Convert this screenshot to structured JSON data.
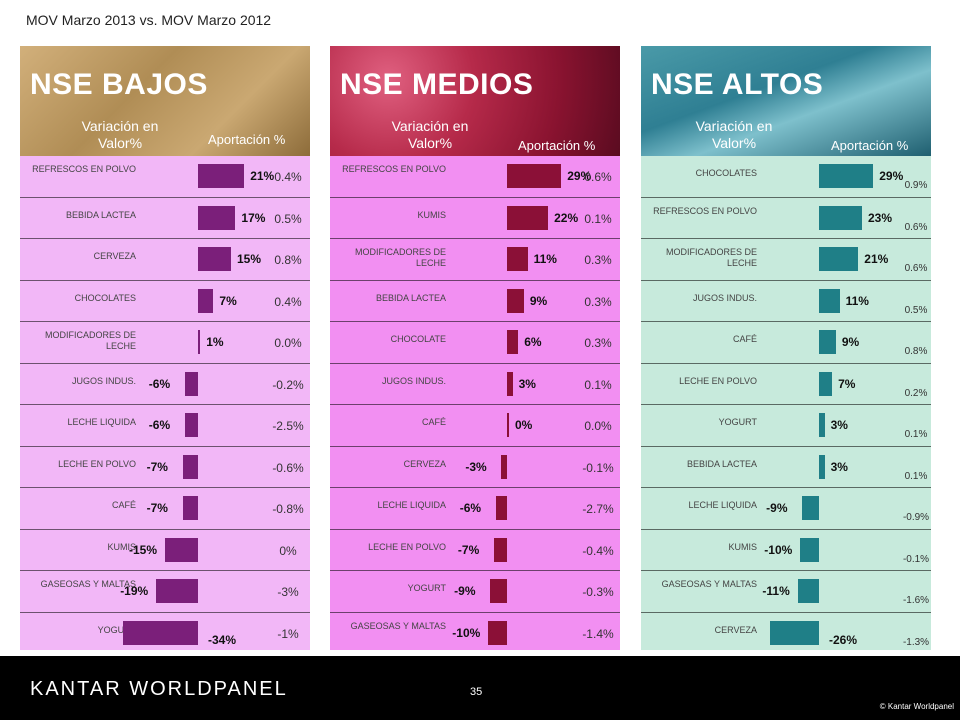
{
  "slide_title": "MOV Marzo 2013  vs. MOV Marzo 2012",
  "col_variacion": "Variación en Valor%",
  "col_aportacion": "Aportación %",
  "panels": [
    {
      "id": "bajos",
      "title": "NSE BAJOS",
      "rows": [
        {
          "cat": "REFRESCOS EN POLVO",
          "var": 21,
          "pct": "21%",
          "ap": "0.4%"
        },
        {
          "cat": "BEBIDA LACTEA",
          "var": 17,
          "pct": "17%",
          "ap": "0.5%"
        },
        {
          "cat": "CERVEZA",
          "var": 15,
          "pct": "15%",
          "ap": "0.8%"
        },
        {
          "cat": "CHOCOLATES",
          "var": 7,
          "pct": "7%",
          "ap": "0.4%"
        },
        {
          "cat": "MODIFICADORES DE LECHE",
          "var": 1,
          "pct": "1%",
          "ap": "0.0%"
        },
        {
          "cat": "JUGOS INDUS.",
          "var": -6,
          "pct": "-6%",
          "ap": "-0.2%"
        },
        {
          "cat": "LECHE LIQUIDA",
          "var": -6,
          "pct": "-6%",
          "ap": "-2.5%"
        },
        {
          "cat": "LECHE EN POLVO",
          "var": -7,
          "pct": "-7%",
          "ap": "-0.6%"
        },
        {
          "cat": "CAFÉ",
          "var": -7,
          "pct": "-7%",
          "ap": "-0.8%"
        },
        {
          "cat": "KUMIS",
          "var": -15,
          "pct": "-15%",
          "ap": "0%"
        },
        {
          "cat": "GASEOSAS Y MALTAS",
          "var": -19,
          "pct": "-19%",
          "ap": "-3%"
        },
        {
          "cat": "YOGURT",
          "var": -34,
          "pct": "-34%",
          "ap": "-1%"
        }
      ]
    },
    {
      "id": "medios",
      "title": "NSE MEDIOS",
      "rows": [
        {
          "cat": "REFRESCOS EN POLVO",
          "var": 29,
          "pct": "29%",
          "ap": "0.6%"
        },
        {
          "cat": "KUMIS",
          "var": 22,
          "pct": "22%",
          "ap": "0.1%"
        },
        {
          "cat": "MODIFICADORES DE LECHE",
          "var": 11,
          "pct": "11%",
          "ap": "0.3%"
        },
        {
          "cat": "BEBIDA LACTEA",
          "var": 9,
          "pct": "9%",
          "ap": "0.3%"
        },
        {
          "cat": "CHOCOLATE",
          "var": 6,
          "pct": "6%",
          "ap": "0.3%"
        },
        {
          "cat": "JUGOS INDUS.",
          "var": 3,
          "pct": "3%",
          "ap": "0.1%"
        },
        {
          "cat": "CAFÉ",
          "var": 0,
          "pct": "0%",
          "ap": "0.0%"
        },
        {
          "cat": "CERVEZA",
          "var": -3,
          "pct": "-3%",
          "ap": "-0.1%"
        },
        {
          "cat": "LECHE LIQUIDA",
          "var": -6,
          "pct": "-6%",
          "ap": "-2.7%"
        },
        {
          "cat": "LECHE EN POLVO",
          "var": -7,
          "pct": "-7%",
          "ap": "-0.4%"
        },
        {
          "cat": "YOGURT",
          "var": -9,
          "pct": "-9%",
          "ap": "-0.3%"
        },
        {
          "cat": "GASEOSAS Y MALTAS",
          "var": -10,
          "pct": "-10%",
          "ap": "-1.4%"
        }
      ]
    },
    {
      "id": "altos",
      "title": "NSE ALTOS",
      "rows": [
        {
          "cat": "CHOCOLATES",
          "var": 29,
          "pct": "29%",
          "ap": "0.9%"
        },
        {
          "cat": "REFRESCOS EN POLVO",
          "var": 23,
          "pct": "23%",
          "ap": "0.6%"
        },
        {
          "cat": "MODIFICADORES DE LECHE",
          "var": 21,
          "pct": "21%",
          "ap": "0.6%"
        },
        {
          "cat": "JUGOS INDUS.",
          "var": 11,
          "pct": "11%",
          "ap": "0.5%"
        },
        {
          "cat": "CAFÉ",
          "var": 9,
          "pct": "9%",
          "ap": "0.8%"
        },
        {
          "cat": "LECHE EN POLVO",
          "var": 7,
          "pct": "7%",
          "ap": "0.2%"
        },
        {
          "cat": "YOGURT",
          "var": 3,
          "pct": "3%",
          "ap": "0.1%"
        },
        {
          "cat": "BEBIDA LACTEA",
          "var": 3,
          "pct": "3%",
          "ap": "0.1%"
        },
        {
          "cat": "LECHE LIQUIDA",
          "var": -9,
          "pct": "-9%",
          "ap": "-0.9%"
        },
        {
          "cat": "KUMIS",
          "var": -10,
          "pct": "-10%",
          "ap": "-0.1%"
        },
        {
          "cat": "GASEOSAS Y MALTAS",
          "var": -11,
          "pct": "-11%",
          "ap": "-1.6%"
        },
        {
          "cat": "CERVEZA",
          "var": -26,
          "pct": "-26%",
          "ap": "-1.3%"
        }
      ]
    }
  ],
  "footer": {
    "logo": "KANTAR WORLDPANEL",
    "page_number": "35",
    "copyright": "© Kantar Worldpanel"
  }
}
